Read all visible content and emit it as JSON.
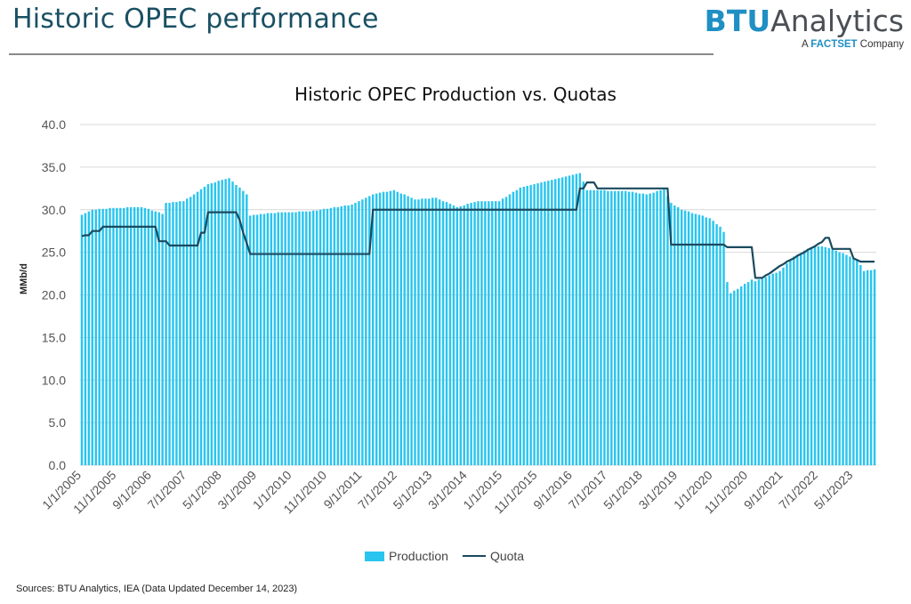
{
  "header": {
    "title": "Historic OPEC performance",
    "brand_btu": "BTU",
    "brand_analytics": "Analytics",
    "brand_tagline_a": "A",
    "brand_tagline_factset": "FACTSET",
    "brand_tagline_company": "Company"
  },
  "footer": {
    "sources": "Sources: BTU Analytics, IEA (Data Updated December 14, 2023)"
  },
  "colors": {
    "production": "#29c5ee",
    "quota": "#1b4a5e",
    "title": "#1a5064",
    "brand_accent": "#1f8fc4"
  },
  "chart_data": {
    "type": "bar",
    "title": "Historic OPEC Production vs. Quotas",
    "ylabel": "MMb/d",
    "xlabel": "",
    "ylim": [
      0,
      40
    ],
    "yticks": [
      "0.0",
      "5.0",
      "10.0",
      "15.0",
      "20.0",
      "25.0",
      "30.0",
      "35.0",
      "40.0"
    ],
    "grid": true,
    "legend_position": "bottom-center",
    "x_start": "2005-01",
    "x_end": "2023-11",
    "xtick_labels": [
      "1/1/2005",
      "11/1/2005",
      "9/1/2006",
      "7/1/2007",
      "5/1/2008",
      "3/1/2009",
      "1/1/2010",
      "11/1/2010",
      "9/1/2011",
      "7/1/2012",
      "5/1/2013",
      "3/1/2014",
      "1/1/2015",
      "11/1/2015",
      "9/1/2016",
      "7/1/2017",
      "5/1/2018",
      "3/1/2019",
      "1/1/2020",
      "11/1/2020",
      "9/1/2021",
      "7/1/2022",
      "5/1/2023"
    ],
    "series": [
      {
        "name": "Production",
        "type": "bar",
        "keypoints": [
          [
            "2005-01",
            29.4
          ],
          [
            "2005-04",
            30.0
          ],
          [
            "2005-10",
            30.2
          ],
          [
            "2006-06",
            30.3
          ],
          [
            "2006-10",
            29.8
          ],
          [
            "2006-12",
            29.5
          ],
          [
            "2007-01",
            30.8
          ],
          [
            "2007-06",
            31.0
          ],
          [
            "2007-09",
            31.8
          ],
          [
            "2008-01",
            33.0
          ],
          [
            "2008-07",
            33.7
          ],
          [
            "2008-12",
            31.8
          ],
          [
            "2009-01",
            29.3
          ],
          [
            "2009-06",
            29.6
          ],
          [
            "2010-06",
            29.8
          ],
          [
            "2010-12",
            30.2
          ],
          [
            "2011-06",
            30.6
          ],
          [
            "2011-12",
            31.8
          ],
          [
            "2012-06",
            32.3
          ],
          [
            "2012-12",
            31.2
          ],
          [
            "2013-06",
            31.4
          ],
          [
            "2013-12",
            30.3
          ],
          [
            "2014-06",
            31.0
          ],
          [
            "2014-12",
            31.0
          ],
          [
            "2015-06",
            32.6
          ],
          [
            "2015-12",
            33.2
          ],
          [
            "2016-06",
            33.8
          ],
          [
            "2016-11",
            34.3
          ],
          [
            "2017-01",
            32.3
          ],
          [
            "2017-12",
            32.2
          ],
          [
            "2018-06",
            31.8
          ],
          [
            "2018-11",
            32.4
          ],
          [
            "2019-01",
            30.8
          ],
          [
            "2019-04",
            30.0
          ],
          [
            "2019-12",
            29.0
          ],
          [
            "2020-03",
            28.0
          ],
          [
            "2020-04",
            27.4
          ],
          [
            "2020-05",
            21.5
          ],
          [
            "2020-06",
            20.2
          ],
          [
            "2020-12",
            21.8
          ],
          [
            "2021-01",
            21.6
          ],
          [
            "2021-08",
            22.8
          ],
          [
            "2021-12",
            24.5
          ],
          [
            "2022-06",
            25.8
          ],
          [
            "2022-09",
            25.6
          ],
          [
            "2022-12",
            25.2
          ],
          [
            "2023-06",
            24.2
          ],
          [
            "2023-08",
            22.8
          ],
          [
            "2023-11",
            23.0
          ]
        ]
      },
      {
        "name": "Quota",
        "type": "line",
        "keypoints": [
          [
            "2005-01",
            26.9
          ],
          [
            "2005-03",
            27.0
          ],
          [
            "2005-04",
            27.5
          ],
          [
            "2005-06",
            27.5
          ],
          [
            "2005-07",
            28.0
          ],
          [
            "2006-10",
            28.0
          ],
          [
            "2006-11",
            26.3
          ],
          [
            "2007-01",
            26.3
          ],
          [
            "2007-02",
            25.8
          ],
          [
            "2007-10",
            25.8
          ],
          [
            "2007-11",
            27.25
          ],
          [
            "2007-12",
            27.25
          ],
          [
            "2008-01",
            29.67
          ],
          [
            "2008-09",
            29.67
          ],
          [
            "2008-10",
            28.8
          ],
          [
            "2008-11",
            27.3
          ],
          [
            "2009-01",
            24.8
          ],
          [
            "2011-11",
            24.8
          ],
          [
            "2011-12",
            30.0
          ],
          [
            "2016-10",
            30.0
          ],
          [
            "2016-11",
            32.5
          ],
          [
            "2016-12",
            32.5
          ],
          [
            "2017-01",
            33.2
          ],
          [
            "2017-03",
            33.2
          ],
          [
            "2017-04",
            32.5
          ],
          [
            "2018-12",
            32.5
          ],
          [
            "2019-01",
            25.9
          ],
          [
            "2020-04",
            25.9
          ],
          [
            "2020-05",
            25.6
          ],
          [
            "2020-12",
            25.6
          ],
          [
            "2021-01",
            22.0
          ],
          [
            "2021-03",
            22.0
          ],
          [
            "2021-05",
            22.5
          ],
          [
            "2021-08",
            23.4
          ],
          [
            "2022-08",
            26.2
          ],
          [
            "2022-09",
            26.7
          ],
          [
            "2022-10",
            26.7
          ],
          [
            "2022-11",
            25.4
          ],
          [
            "2023-04",
            25.4
          ],
          [
            "2023-05",
            24.3
          ],
          [
            "2023-07",
            23.9
          ],
          [
            "2023-11",
            23.9
          ]
        ]
      }
    ]
  }
}
